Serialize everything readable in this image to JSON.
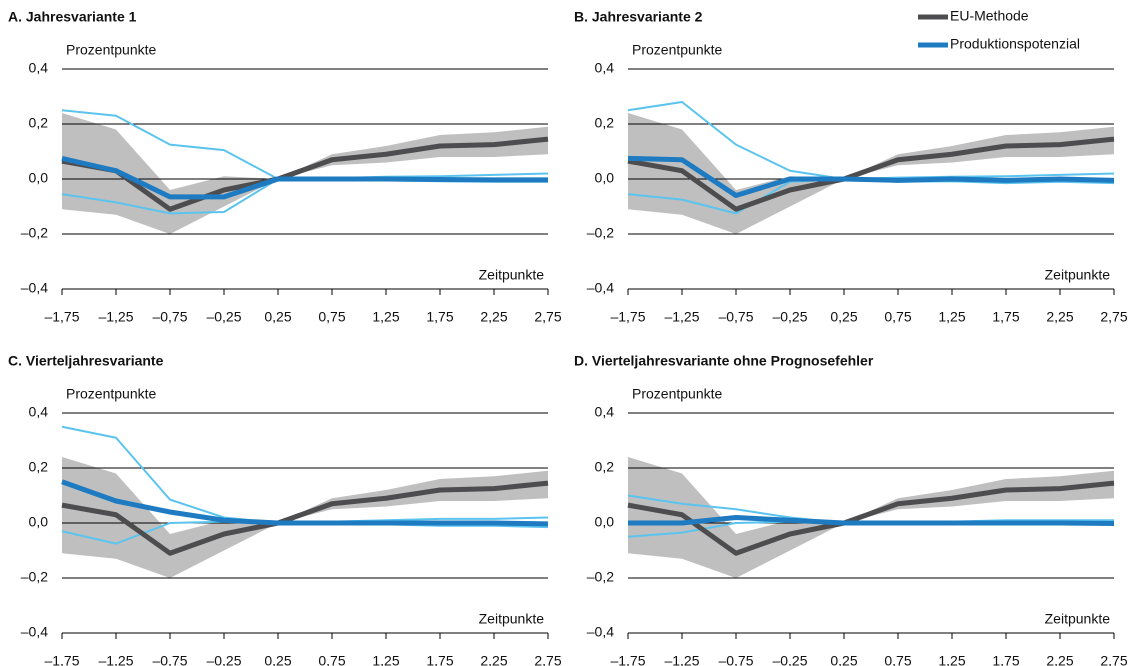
{
  "chart_data": [
    {
      "type": "line",
      "title": "A. Jahresvariante 1",
      "y_label": "Prozentpunkte",
      "x_label": "Zeitpunkte",
      "categories": [
        "–1,75",
        "–1,25",
        "–0,75",
        "–0,25",
        "0,25",
        "0,75",
        "1,25",
        "1,75",
        "2,25",
        "2,75"
      ],
      "ylim": [
        -0.4,
        0.4
      ],
      "yticks": [
        {
          "value": -0.4,
          "label": "–0,4"
        },
        {
          "value": -0.2,
          "label": "–0,2"
        },
        {
          "value": 0,
          "label": "0,0"
        },
        {
          "value": 0.2,
          "label": "0,2"
        },
        {
          "value": 0.4,
          "label": "0,4"
        }
      ],
      "grid": true,
      "band": {
        "color": "#bfbfbf",
        "upper": [
          0.24,
          0.18,
          -0.04,
          0.01,
          0,
          0.09,
          0.12,
          0.16,
          0.17,
          0.19
        ],
        "lower": [
          -0.11,
          -0.13,
          -0.2,
          -0.1,
          0,
          0.05,
          0.06,
          0.08,
          0.08,
          0.09
        ]
      },
      "series": [
        {
          "color": "#5bc4ee",
          "width": 2,
          "values": [
            0.25,
            0.23,
            0.125,
            0.105,
            0,
            0.003,
            0.008,
            0.01,
            0.015,
            0.02
          ]
        },
        {
          "color": "#5bc4ee",
          "width": 2,
          "values": [
            -0.055,
            -0.085,
            -0.125,
            -0.12,
            0,
            -0.003,
            -0.005,
            -0.008,
            -0.01,
            -0.01
          ]
        },
        {
          "color": "#4d4d4f",
          "width": 5,
          "values": [
            0.065,
            0.03,
            -0.11,
            -0.04,
            0,
            0.07,
            0.09,
            0.12,
            0.125,
            0.145
          ]
        },
        {
          "color": "#1f7bc1",
          "width": 5,
          "values": [
            0.075,
            0.03,
            -0.065,
            -0.065,
            0,
            0,
            0,
            -0.002,
            -0.003,
            -0.003
          ]
        }
      ]
    },
    {
      "type": "line",
      "title": "B. Jahresvariante 2",
      "y_label": "Prozentpunkte",
      "x_label": "Zeitpunkte",
      "categories": [
        "–1,75",
        "–1,25",
        "–0,75",
        "–0,25",
        "0,25",
        "0,75",
        "1,25",
        "1,75",
        "2,25",
        "2,75"
      ],
      "ylim": [
        -0.4,
        0.4
      ],
      "yticks": [
        {
          "value": -0.4,
          "label": "–0,4"
        },
        {
          "value": -0.2,
          "label": "–0,2"
        },
        {
          "value": 0,
          "label": "0,0"
        },
        {
          "value": 0.2,
          "label": "0,2"
        },
        {
          "value": 0.4,
          "label": "0,4"
        }
      ],
      "grid": true,
      "band": {
        "color": "#bfbfbf",
        "upper": [
          0.24,
          0.18,
          -0.04,
          0.01,
          0,
          0.09,
          0.12,
          0.16,
          0.17,
          0.19
        ],
        "lower": [
          -0.11,
          -0.13,
          -0.2,
          -0.1,
          0,
          0.05,
          0.06,
          0.08,
          0.08,
          0.09
        ]
      },
      "series": [
        {
          "color": "#5bc4ee",
          "width": 2,
          "values": [
            0.25,
            0.28,
            0.125,
            0.03,
            0,
            0.005,
            0.008,
            0.01,
            0.015,
            0.02
          ]
        },
        {
          "color": "#5bc4ee",
          "width": 2,
          "values": [
            -0.055,
            -0.075,
            -0.125,
            -0.01,
            0,
            -0.01,
            -0.008,
            -0.015,
            -0.01,
            -0.015
          ]
        },
        {
          "name": "EU-Methode",
          "color": "#4d4d4f",
          "width": 5,
          "values": [
            0.065,
            0.03,
            -0.11,
            -0.04,
            0,
            0.07,
            0.09,
            0.12,
            0.125,
            0.145
          ]
        },
        {
          "name": "Produktionspotenzial",
          "color": "#1f7bc1",
          "width": 5,
          "values": [
            0.075,
            0.07,
            -0.06,
            0,
            0,
            -0.005,
            0,
            -0.005,
            0,
            -0.005
          ]
        }
      ]
    },
    {
      "type": "line",
      "title": "C. Vierteljahresvariante",
      "y_label": "Prozentpunkte",
      "x_label": "Zeitpunkte",
      "categories": [
        "–1,75",
        "–1,25",
        "–0,75",
        "–0,25",
        "0,25",
        "0,75",
        "1,25",
        "1,75",
        "2,25",
        "2,75"
      ],
      "ylim": [
        -0.4,
        0.4
      ],
      "yticks": [
        {
          "value": -0.4,
          "label": "–0,4"
        },
        {
          "value": -0.2,
          "label": "–0,2"
        },
        {
          "value": 0,
          "label": "0,0"
        },
        {
          "value": 0.2,
          "label": "0,2"
        },
        {
          "value": 0.4,
          "label": "0,4"
        }
      ],
      "grid": true,
      "band": {
        "color": "#bfbfbf",
        "upper": [
          0.24,
          0.18,
          -0.04,
          0.01,
          0,
          0.09,
          0.12,
          0.16,
          0.17,
          0.19
        ],
        "lower": [
          -0.11,
          -0.13,
          -0.2,
          -0.1,
          0,
          0.05,
          0.06,
          0.08,
          0.08,
          0.09
        ]
      },
      "series": [
        {
          "color": "#5bc4ee",
          "width": 2,
          "values": [
            0.35,
            0.31,
            0.085,
            0.02,
            0,
            0.005,
            0.01,
            0.015,
            0.015,
            0.02
          ]
        },
        {
          "color": "#5bc4ee",
          "width": 2,
          "values": [
            -0.03,
            -0.075,
            0,
            0.005,
            0,
            -0.005,
            -0.005,
            -0.01,
            -0.01,
            -0.015
          ]
        },
        {
          "color": "#4d4d4f",
          "width": 5,
          "values": [
            0.065,
            0.03,
            -0.11,
            -0.04,
            0,
            0.07,
            0.09,
            0.12,
            0.125,
            0.145
          ]
        },
        {
          "color": "#1f7bc1",
          "width": 5,
          "values": [
            0.15,
            0.08,
            0.04,
            0.01,
            0,
            0,
            0,
            0,
            0,
            -0.003
          ]
        }
      ]
    },
    {
      "type": "line",
      "title": "D. Vierteljahresvariante ohne Prognosefehler",
      "y_label": "Prozentpunkte",
      "x_label": "Zeitpunkte",
      "categories": [
        "–1,75",
        "–1,25",
        "–0,75",
        "–0,25",
        "0,25",
        "0,75",
        "1,25",
        "1,75",
        "2,25",
        "2,75"
      ],
      "ylim": [
        -0.4,
        0.4
      ],
      "yticks": [
        {
          "value": -0.4,
          "label": "–0,4"
        },
        {
          "value": -0.2,
          "label": "–0,2"
        },
        {
          "value": 0,
          "label": "0,0"
        },
        {
          "value": 0.2,
          "label": "0,2"
        },
        {
          "value": 0.4,
          "label": "0,4"
        }
      ],
      "grid": true,
      "band": {
        "color": "#bfbfbf",
        "upper": [
          0.24,
          0.18,
          -0.04,
          0.01,
          0,
          0.09,
          0.12,
          0.16,
          0.17,
          0.19
        ],
        "lower": [
          -0.11,
          -0.13,
          -0.2,
          -0.1,
          0,
          0.05,
          0.06,
          0.08,
          0.08,
          0.09
        ]
      },
      "series": [
        {
          "color": "#5bc4ee",
          "width": 2,
          "values": [
            0.1,
            0.07,
            0.05,
            0.02,
            0,
            0.005,
            0.005,
            0.01,
            0.01,
            0.01
          ]
        },
        {
          "color": "#5bc4ee",
          "width": 2,
          "values": [
            -0.05,
            -0.035,
            0,
            0.005,
            0,
            -0.005,
            -0.005,
            -0.005,
            -0.005,
            -0.005
          ]
        },
        {
          "color": "#4d4d4f",
          "width": 5,
          "values": [
            0.065,
            0.03,
            -0.11,
            -0.04,
            0,
            0.07,
            0.09,
            0.12,
            0.125,
            0.145
          ]
        },
        {
          "color": "#1f7bc1",
          "width": 5,
          "values": [
            0,
            0,
            0.02,
            0.01,
            0,
            0,
            0,
            0,
            0,
            -0.002
          ]
        }
      ]
    }
  ]
}
